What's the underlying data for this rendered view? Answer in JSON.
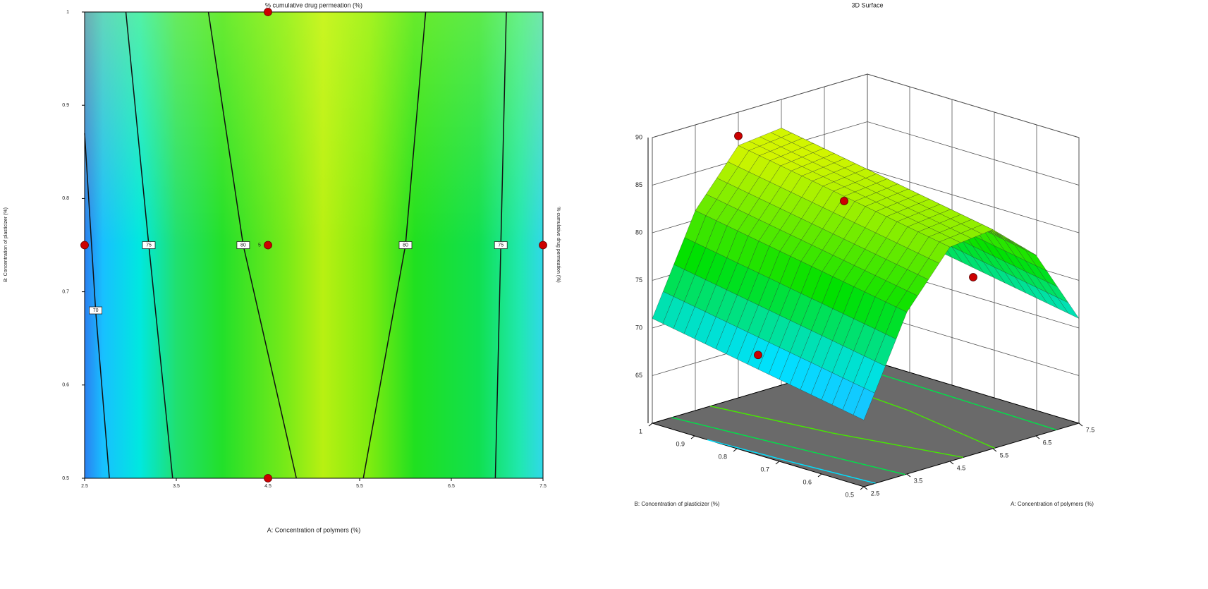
{
  "chart_data": [
    {
      "type": "contour",
      "title": "% cumulative drug permeation (%)",
      "xlabel": "A: Concentration of polymers (%)",
      "ylabel": "B: Concentration of plasticizer (%)",
      "right_label": "% cumulative drug permeation (%)",
      "xlim": [
        2.5,
        7.5
      ],
      "ylim": [
        0.5,
        1
      ],
      "xticks": [
        2.5,
        3.5,
        4.5,
        5.5,
        6.5,
        7.5
      ],
      "yticks": [
        0.5,
        0.6,
        0.7,
        0.8,
        0.9,
        1
      ],
      "contours": [
        {
          "level": 70,
          "x": [
            2.5,
            2.62,
            2.77
          ],
          "y": [
            0.87,
            0.68,
            0.5
          ]
        },
        {
          "level": 75,
          "x": [
            2.95,
            3.2,
            3.46
          ],
          "y": [
            1,
            0.75,
            0.5
          ]
        },
        {
          "level": 80,
          "x": [
            3.85,
            4.23,
            4.81
          ],
          "y": [
            1,
            0.75,
            0.5
          ]
        },
        {
          "level": 80,
          "x": [
            6.22,
            6.0,
            5.54
          ],
          "y": [
            1,
            0.75,
            0.5
          ]
        },
        {
          "level": 75,
          "x": [
            7.1,
            7.04,
            6.98
          ],
          "y": [
            1,
            0.75,
            0.5
          ]
        }
      ],
      "points": {
        "x": [
          2.5,
          4.5,
          4.5,
          4.5,
          7.5
        ],
        "y": [
          0.75,
          0.75,
          0.5,
          1,
          0.75
        ]
      },
      "center_label": "5",
      "point_color": "#cc0000"
    },
    {
      "type": "surface3d",
      "title": "3D Surface",
      "xlabel": "A: Concentration of polymers (%)",
      "ylabel": "B: Concentration of plasticizer (%)",
      "xlim": [
        2.5,
        7.5
      ],
      "ylim": [
        0.5,
        1
      ],
      "zlim": [
        60,
        90
      ],
      "xticks": [
        2.5,
        3.5,
        4.5,
        5.5,
        6.5,
        7.5
      ],
      "yticks": [
        0.5,
        0.6,
        0.7,
        0.8,
        0.9,
        1
      ],
      "zticks": [
        65,
        70,
        75,
        80,
        85,
        90
      ],
      "surface": {
        "a": [
          2.5,
          3.5,
          4.5,
          5.5,
          6.5,
          7.5
        ],
        "b": [
          0.5,
          0.6,
          0.7,
          0.8,
          0.9,
          1
        ],
        "z": [
          [
            67,
            77,
            82.5,
            83,
            79,
            71
          ],
          [
            67.8,
            77.8,
            83.3,
            83.8,
            79.8,
            71.8
          ],
          [
            68.6,
            78.6,
            84.1,
            84.6,
            80.6,
            72.6
          ],
          [
            69.4,
            79.4,
            84.9,
            85.4,
            81.4,
            73.4
          ],
          [
            70.2,
            80.2,
            85.7,
            86.2,
            82.2,
            74.2
          ],
          [
            71,
            81,
            86.5,
            87,
            83,
            75
          ]
        ]
      },
      "points": {
        "x": [
          4.5,
          4.5,
          2.5,
          7.5
        ],
        "y": [
          1,
          0.75,
          0.75,
          0.75
        ],
        "z": [
          87.5,
          84,
          70.5,
          72
        ]
      },
      "point_color": "#cc0000"
    }
  ]
}
